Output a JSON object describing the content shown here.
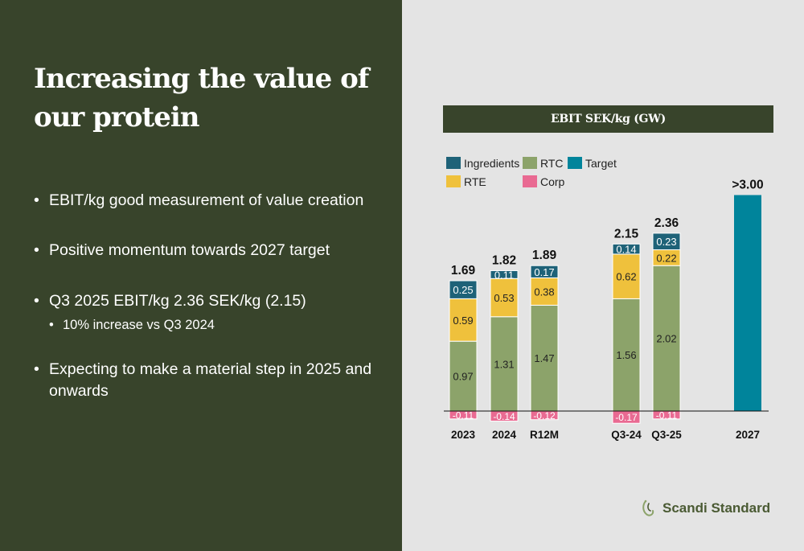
{
  "slide": {
    "title_line1": "Increasing the value of",
    "title_line2": "our protein",
    "bullets": [
      "EBIT/kg good measurement of value creation",
      "Positive momentum towards 2027 target",
      "Q3 2025 EBIT/kg 2.36 SEK/kg (2.15)",
      "Expecting to make a material step in 2025 and onwards"
    ],
    "sub_bullet": "10% increase vs Q3 2024",
    "chart_header": "EBIT SEK/kg (GW)",
    "logo_text": "Scandi Standard"
  },
  "colors": {
    "left_bg": "#38442b",
    "right_bg": "#e4e4e4",
    "ingredients": "#1e6278",
    "rtc": "#8ca36a",
    "target": "#00849b",
    "rte": "#efc13c",
    "corp": "#e96a92"
  },
  "chart_data": {
    "type": "bar",
    "stacked": true,
    "title": "EBIT SEK/kg (GW)",
    "categories": [
      "2023",
      "2024",
      "R12M",
      "Q3-24",
      "Q3-25",
      "2027"
    ],
    "series": [
      {
        "name": "RTC",
        "color_key": "rtc",
        "values": [
          0.97,
          1.31,
          1.47,
          1.56,
          2.02,
          null
        ],
        "labels": [
          "0.97",
          "1.31",
          "1.47",
          "1.56",
          "2.02",
          ""
        ]
      },
      {
        "name": "RTE",
        "color_key": "rte",
        "values": [
          0.59,
          0.53,
          0.38,
          0.62,
          0.22,
          null
        ],
        "labels": [
          "0.59",
          "0.53",
          "0.38",
          "0.62",
          "0.22",
          ""
        ]
      },
      {
        "name": "Ingredients",
        "color_key": "ingredients",
        "values": [
          0.25,
          0.11,
          0.17,
          0.14,
          0.23,
          null
        ],
        "labels": [
          "0.25",
          "0.11",
          "0.17",
          "0.14",
          "0.23",
          ""
        ]
      },
      {
        "name": "Corp",
        "color_key": "corp",
        "values": [
          -0.11,
          -0.14,
          -0.12,
          -0.17,
          -0.11,
          null
        ],
        "labels": [
          "-0.11",
          "-0.14",
          "-0.12",
          "-0.17",
          "-0.11",
          ""
        ]
      },
      {
        "name": "Target",
        "color_key": "target",
        "values": [
          null,
          null,
          null,
          null,
          null,
          3.0
        ],
        "labels": [
          "",
          "",
          "",
          "",
          "",
          ""
        ]
      }
    ],
    "totals": [
      "1.69",
      "1.82",
      "1.89",
      "2.15",
      "2.36",
      ">3.00"
    ],
    "legend": [
      {
        "name": "Ingredients",
        "color_key": "ingredients"
      },
      {
        "name": "RTC",
        "color_key": "rtc"
      },
      {
        "name": "Target",
        "color_key": "target"
      },
      {
        "name": "RTE",
        "color_key": "rte"
      },
      {
        "name": "Corp",
        "color_key": "corp"
      }
    ],
    "legend_position": "top-left",
    "grid": false
  }
}
